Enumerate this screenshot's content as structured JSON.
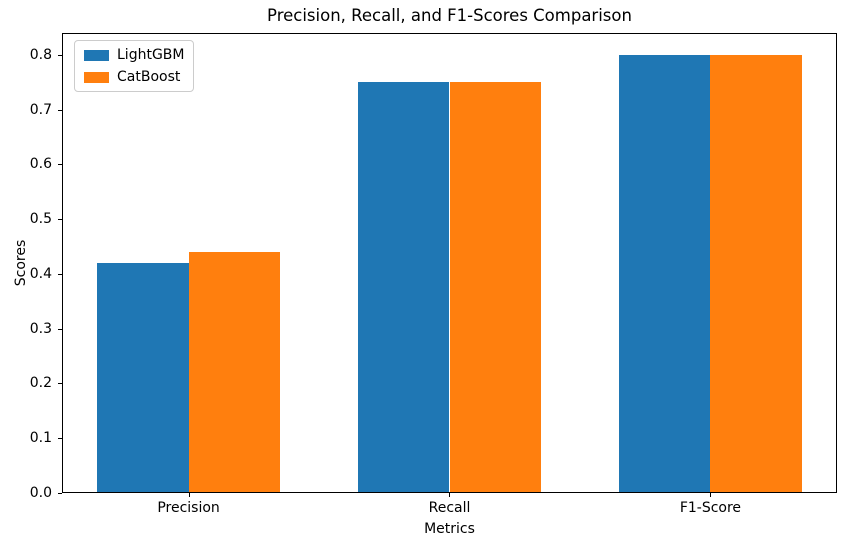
{
  "chart_data": {
    "type": "bar",
    "title": "Precision, Recall, and F1-Scores Comparison",
    "xlabel": "Metrics",
    "ylabel": "Scores",
    "categories": [
      "Precision",
      "Recall",
      "F1-Score"
    ],
    "series": [
      {
        "name": "LightGBM",
        "color": "#1f77b4",
        "values": [
          0.42,
          0.75,
          0.8
        ]
      },
      {
        "name": "CatBoost",
        "color": "#ff7f0e",
        "values": [
          0.44,
          0.75,
          0.8
        ]
      }
    ],
    "bar_width": 0.35,
    "ylim": [
      0,
      0.84
    ],
    "yticks": [
      0.0,
      0.1,
      0.2,
      0.3,
      0.4,
      0.5,
      0.6,
      0.7,
      0.8
    ],
    "ytick_labels": [
      "0.0",
      "0.1",
      "0.2",
      "0.3",
      "0.4",
      "0.5",
      "0.6",
      "0.7",
      "0.8"
    ],
    "legend_position": "upper left",
    "grid": false,
    "axis_color": "#000000",
    "background_color": "#ffffff"
  }
}
